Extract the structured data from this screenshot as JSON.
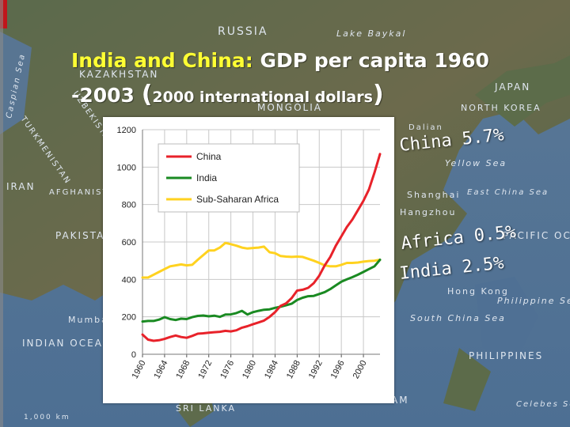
{
  "slide": {
    "title_part1": "India and China:",
    "title_part2": "GDP per capita 1960",
    "title_part3": "-2003",
    "title_part4": "(",
    "title_part5": "2000 international dollars",
    "title_part6": ")"
  },
  "annotations": {
    "china": "China 5.7%",
    "africa": "Africa 0.5%",
    "india": "India 2.5%"
  },
  "map_labels": [
    "RUSSIA",
    "Lake Baykal",
    "KAZAKHSTAN",
    "MONGOLIA",
    "JAPAN",
    "NORTH KOREA",
    "Dalian",
    "Yellow Sea",
    "East China Sea",
    "Shanghai",
    "Hangzhou",
    "IRAN",
    "AFGHANISTAN",
    "PAKISTAN",
    "TURKMENISTAN",
    "UZBEKISTAN",
    "Caspian Sea",
    "PACIFIC OCEAN",
    "Philippine Sea",
    "Hong Kong",
    "South China Sea",
    "PHILIPPINES",
    "Mumbai",
    "INDIAN OCEAN",
    "SRI LANKA",
    "Celebes Sea",
    "1,000 km",
    "AM"
  ],
  "colors": {
    "china": "#e8222a",
    "india": "#1a8a22",
    "africa": "#ffd21f",
    "title_yellow": "#ffff33",
    "title_white": "#ffffff"
  },
  "chart_data": {
    "type": "line",
    "title": "",
    "xlabel": "",
    "ylabel": "",
    "xlim": [
      1960,
      2003
    ],
    "ylim": [
      0,
      1200
    ],
    "xticks": [
      "1960",
      "1964",
      "1968",
      "1972",
      "1976",
      "1980",
      "1984",
      "1988",
      "1992",
      "1996",
      "2000"
    ],
    "yticks": [
      "0",
      "200",
      "400",
      "600",
      "800",
      "1000",
      "1200"
    ],
    "grid": true,
    "legend_position": "top-left",
    "x": [
      1960,
      1961,
      1962,
      1963,
      1964,
      1965,
      1966,
      1967,
      1968,
      1969,
      1970,
      1971,
      1972,
      1973,
      1974,
      1975,
      1976,
      1977,
      1978,
      1979,
      1980,
      1981,
      1982,
      1983,
      1984,
      1985,
      1986,
      1987,
      1988,
      1989,
      1990,
      1991,
      1992,
      1993,
      1994,
      1995,
      1996,
      1997,
      1998,
      1999,
      2000,
      2001,
      2002,
      2003
    ],
    "series": [
      {
        "name": "China",
        "values": [
          105,
          78,
          72,
          75,
          82,
          92,
          100,
          92,
          88,
          98,
          110,
          112,
          115,
          118,
          120,
          125,
          122,
          128,
          142,
          150,
          160,
          170,
          180,
          200,
          225,
          258,
          272,
          300,
          340,
          345,
          355,
          380,
          420,
          475,
          520,
          580,
          630,
          680,
          720,
          770,
          820,
          880,
          970,
          1070
        ]
      },
      {
        "name": "India",
        "values": [
          175,
          178,
          178,
          185,
          198,
          188,
          183,
          190,
          188,
          198,
          205,
          207,
          203,
          206,
          200,
          212,
          213,
          220,
          232,
          212,
          225,
          232,
          238,
          240,
          248,
          254,
          262,
          270,
          290,
          302,
          310,
          312,
          322,
          332,
          348,
          368,
          388,
          400,
          412,
          425,
          440,
          455,
          470,
          505
        ]
      },
      {
        "name": "Sub-Saharan Africa",
        "values": [
          410,
          410,
          425,
          440,
          455,
          470,
          475,
          480,
          475,
          478,
          505,
          530,
          555,
          555,
          570,
          595,
          588,
          580,
          570,
          565,
          568,
          570,
          575,
          545,
          540,
          525,
          522,
          520,
          522,
          520,
          510,
          500,
          488,
          475,
          470,
          470,
          478,
          488,
          488,
          490,
          495,
          498,
          500,
          505
        ]
      }
    ]
  }
}
